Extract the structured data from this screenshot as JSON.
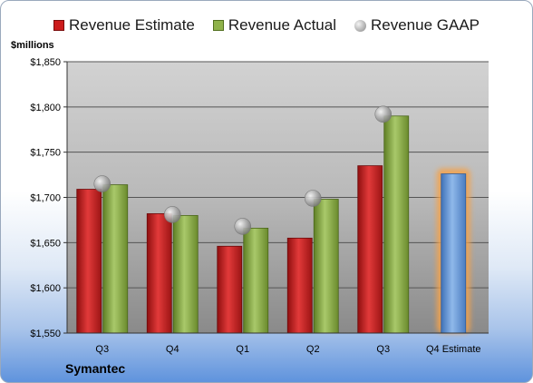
{
  "legend": {
    "estimate": "Revenue Estimate",
    "actual": "Revenue Actual",
    "gaap": "Revenue GAAP"
  },
  "units_label": "$millions",
  "company": "Symantec",
  "colors": {
    "estimate": "#c8201f",
    "actual": "#8db04a",
    "gaap": "#b0b0b0",
    "estimate_future": "#6f9fd8",
    "glow": "#f5a24a"
  },
  "chart_data": {
    "type": "bar",
    "categories": [
      "Q3",
      "Q4",
      "Q1",
      "Q2",
      "Q3",
      "Q4 Estimate"
    ],
    "series": [
      {
        "name": "Revenue Estimate",
        "values": [
          1709,
          1682,
          1646,
          1655,
          1735,
          1726
        ]
      },
      {
        "name": "Revenue Actual",
        "values": [
          1714,
          1680,
          1666,
          1698,
          1790,
          null
        ]
      },
      {
        "name": "Revenue GAAP",
        "values": [
          1715,
          1681,
          1668,
          1699,
          1792,
          null
        ]
      }
    ],
    "ylabel": "$millions",
    "ylim": [
      1550,
      1850
    ],
    "yticks": [
      "$1,550",
      "$1,600",
      "$1,650",
      "$1,700",
      "$1,750",
      "$1,800",
      "$1,850"
    ],
    "grid": true,
    "legend_position": "top"
  }
}
